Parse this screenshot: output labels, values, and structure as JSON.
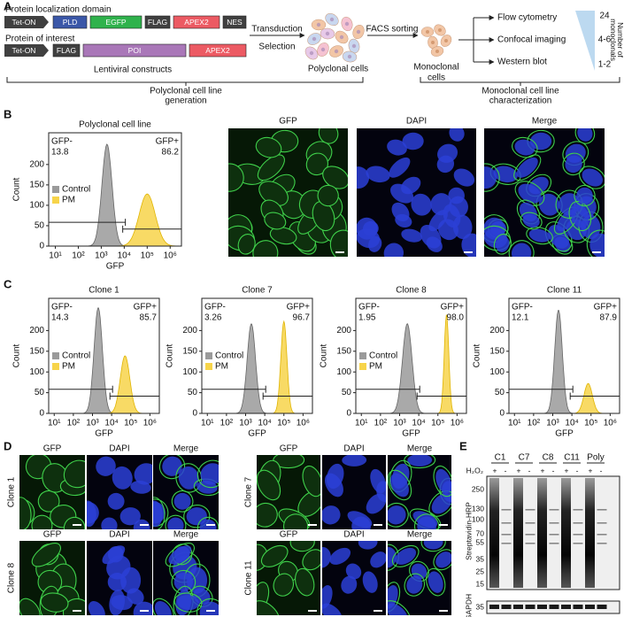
{
  "panel_labels": [
    "A",
    "B",
    "C",
    "D",
    "E"
  ],
  "a": {
    "construct1": {
      "title": "Protein localization domain",
      "parts": [
        "Tet-ON",
        "PLD",
        "EGFP",
        "FLAG",
        "APEX2",
        "NES"
      ]
    },
    "construct2": {
      "title": "Protein of interest",
      "parts": [
        "Tet-ON",
        "FLAG",
        "POI",
        "APEX2"
      ]
    },
    "constructs_caption": "Lentiviral constructs",
    "step1": [
      "Transduction",
      "Selection"
    ],
    "polyclonal": "Polyclonal cells",
    "step2": "FACS sorting",
    "monoclonal": [
      "Monoclonal",
      "cells"
    ],
    "assays": [
      "Flow cytometry",
      "Confocal imaging",
      "Western blot"
    ],
    "counts": [
      "24",
      "4-6",
      "1-2"
    ],
    "count_axis": [
      "Number of",
      "monoclonals"
    ],
    "bracket_left": [
      "Polyclonal cell line",
      "generation"
    ],
    "bracket_right": [
      "Monoclonal cell line",
      "characterization"
    ]
  },
  "flow_axes": {
    "ylabel": "Count",
    "xlabel": "GFP",
    "yticks": [
      "0",
      "50",
      "100",
      "150",
      "200"
    ],
    "xticks": [
      "10¹",
      "10²",
      "10³",
      "10⁴",
      "10⁵",
      "10⁶"
    ],
    "legend": [
      "Control",
      "PM"
    ]
  },
  "b": {
    "plot": {
      "title": "Polyclonal cell line",
      "neg": [
        "GFP-",
        "13.8"
      ],
      "pos": [
        "GFP+",
        "86.2"
      ]
    },
    "images": [
      "GFP",
      "DAPI",
      "Merge"
    ]
  },
  "c": {
    "plots": [
      {
        "title": "Clone 1",
        "neg": [
          "GFP-",
          "14.3"
        ],
        "pos": [
          "GFP+",
          "85.7"
        ]
      },
      {
        "title": "Clone 7",
        "neg": [
          "GFP-",
          "3.26"
        ],
        "pos": [
          "GFP+",
          "96.7"
        ]
      },
      {
        "title": "Clone 8",
        "neg": [
          "GFP-",
          "1.95"
        ],
        "pos": [
          "GFP+",
          "98.0"
        ]
      },
      {
        "title": "Clone 11",
        "neg": [
          "GFP-",
          "12.1"
        ],
        "pos": [
          "GFP+",
          "87.9"
        ]
      }
    ]
  },
  "d": {
    "channels": [
      "GFP",
      "DAPI",
      "Merge"
    ],
    "clones": [
      "Clone 1",
      "Clone 7",
      "Clone 8",
      "Clone 11"
    ]
  },
  "e": {
    "lanes": [
      "C1",
      "C7",
      "C8",
      "C11",
      "Poly"
    ],
    "treatment": "H₂O₂",
    "signs": [
      "+",
      "-"
    ],
    "mw": [
      "250",
      "130",
      "100",
      "70",
      "55",
      "35",
      "25",
      "15"
    ],
    "probe": "Streptavidin-HRP",
    "loading": "GAPDH",
    "loading_mw": "35"
  }
}
